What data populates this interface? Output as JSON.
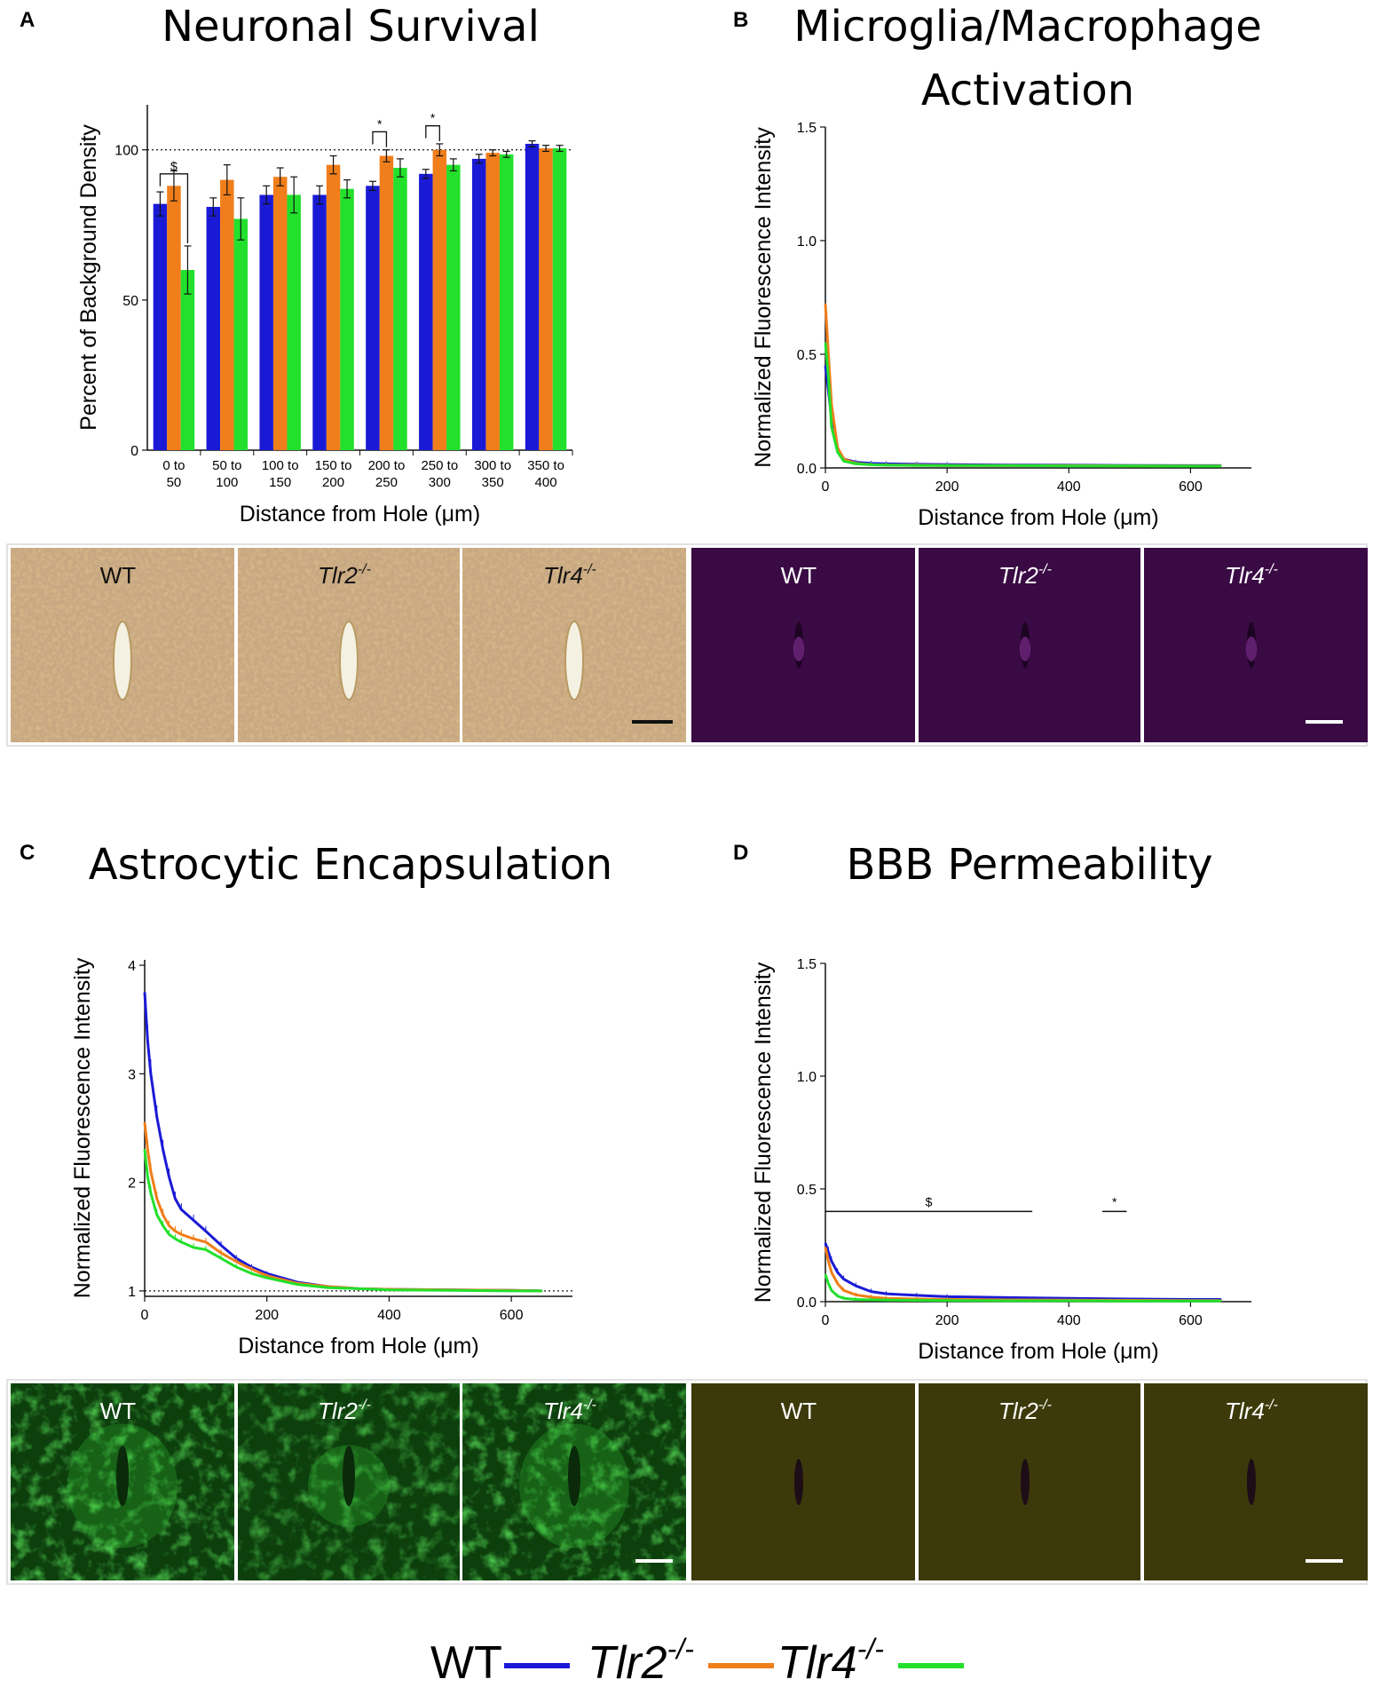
{
  "panels": {
    "A": {
      "letter": "A",
      "title": "Neuronal Survival"
    },
    "B": {
      "letter": "B",
      "title_line1": "Microglia/Macrophage",
      "title_line2": "Activation"
    },
    "C": {
      "letter": "C",
      "title": "Astrocytic Encapsulation"
    },
    "D": {
      "letter": "D",
      "title": "BBB Permeability"
    }
  },
  "genotypes": {
    "wt": "WT",
    "tlr2": "Tlr2",
    "tlr4": "Tlr4",
    "sup": "-/-"
  },
  "colors": {
    "wt": "#1a1ad6",
    "tlr2": "#f07e1a",
    "tlr4": "#22e02c"
  },
  "micrographs": {
    "A": {
      "stain_color": "#c8a882",
      "tiles": [
        "WT",
        "Tlr2",
        "Tlr4"
      ]
    },
    "B": {
      "stain_color": "#3a0a44",
      "tiles": [
        "WT",
        "Tlr2",
        "Tlr4"
      ]
    },
    "C": {
      "stain_color": "#0d3f0d",
      "tiles": [
        "WT",
        "Tlr2",
        "Tlr4"
      ]
    },
    "D": {
      "stain_color": "#3c3a0a",
      "tiles": [
        "WT",
        "Tlr2",
        "Tlr4"
      ]
    }
  },
  "legend": {
    "wt": "WT",
    "tlr2": "Tlr2",
    "tlr4": "Tlr4",
    "sup": "-/-"
  },
  "chart_data": [
    {
      "panel": "A",
      "type": "bar",
      "title": "Neuronal Survival",
      "xlabel": "Distance from Hole (μm)",
      "ylabel": "Percent of Background Density",
      "ylim": [
        0,
        115
      ],
      "yticks": [
        0,
        50,
        100
      ],
      "reference_line": 100,
      "categories": [
        [
          "0 to",
          "50"
        ],
        [
          "50 to",
          "100"
        ],
        [
          "100 to",
          "150"
        ],
        [
          "150 to",
          "200"
        ],
        [
          "200 to",
          "250"
        ],
        [
          "250 to",
          "300"
        ],
        [
          "300 to",
          "350"
        ],
        [
          "350 to",
          "400"
        ]
      ],
      "series": [
        {
          "name": "WT",
          "color": "#1a1ad6",
          "values": [
            82,
            81,
            85,
            85,
            88,
            92,
            97,
            102
          ],
          "errors": [
            4,
            3,
            3,
            3,
            1.5,
            1.5,
            1.5,
            1
          ]
        },
        {
          "name": "Tlr2-/-",
          "color": "#f07e1a",
          "values": [
            88,
            90,
            91,
            95,
            98,
            100,
            99,
            100.5
          ],
          "errors": [
            5,
            5,
            3,
            3,
            2,
            2,
            1,
            1
          ]
        },
        {
          "name": "Tlr4-/-",
          "color": "#22e02c",
          "values": [
            60,
            77,
            85,
            87,
            94,
            95,
            98.5,
            100.5
          ],
          "errors": [
            8,
            7,
            6,
            3,
            3,
            2,
            1,
            1
          ]
        }
      ],
      "significance": [
        {
          "label": "$",
          "category_index": 0,
          "between": [
            "WT",
            "Tlr4-/-"
          ]
        },
        {
          "label": "*",
          "category_index": 4,
          "between": [
            "WT",
            "Tlr2-/-"
          ]
        },
        {
          "label": "*",
          "category_index": 5,
          "between": [
            "WT",
            "Tlr2-/-"
          ]
        }
      ]
    },
    {
      "panel": "B",
      "type": "line",
      "title": "Microglia/Macrophage Activation",
      "xlabel": "Distance from Hole (μm)",
      "ylabel": "Normalized Fluorescence Intensity",
      "xlim": [
        0,
        700
      ],
      "ylim": [
        0,
        1.5
      ],
      "xticks": [
        0,
        200,
        400,
        600
      ],
      "yticks": [
        0.0,
        0.5,
        1.0,
        1.5
      ],
      "series": [
        {
          "name": "WT",
          "color": "#1a1ad6",
          "x": [
            0,
            5,
            10,
            20,
            30,
            50,
            75,
            100,
            150,
            200,
            300,
            400,
            500,
            600,
            650
          ],
          "y": [
            0.45,
            0.34,
            0.22,
            0.08,
            0.04,
            0.025,
            0.02,
            0.018,
            0.016,
            0.015,
            0.013,
            0.012,
            0.011,
            0.01,
            0.01
          ]
        },
        {
          "name": "Tlr2-/-",
          "color": "#f07e1a",
          "x": [
            0,
            5,
            10,
            20,
            30,
            50,
            75,
            100,
            150,
            200,
            300,
            400,
            500,
            600,
            650
          ],
          "y": [
            0.72,
            0.5,
            0.28,
            0.09,
            0.04,
            0.02,
            0.015,
            0.013,
            0.012,
            0.011,
            0.01,
            0.01,
            0.009,
            0.009,
            0.009
          ]
        },
        {
          "name": "Tlr4-/-",
          "color": "#22e02c",
          "x": [
            0,
            5,
            10,
            20,
            30,
            50,
            75,
            100,
            150,
            200,
            300,
            400,
            500,
            600,
            650
          ],
          "y": [
            0.55,
            0.4,
            0.18,
            0.07,
            0.03,
            0.018,
            0.014,
            0.012,
            0.011,
            0.01,
            0.01,
            0.009,
            0.009,
            0.008,
            0.008
          ]
        }
      ]
    },
    {
      "panel": "C",
      "type": "line",
      "title": "Astrocytic Encapsulation",
      "xlabel": "Distance from Hole (μm)",
      "ylabel": "Normalized Fluorescence Intensity",
      "xlim": [
        0,
        700
      ],
      "ylim": [
        0.95,
        4.05
      ],
      "xticks": [
        0,
        200,
        400,
        600
      ],
      "yticks": [
        1,
        2,
        3,
        4
      ],
      "reference_line": 1,
      "series": [
        {
          "name": "WT",
          "color": "#1a1ad6",
          "x": [
            0,
            5,
            10,
            20,
            30,
            40,
            50,
            60,
            80,
            100,
            125,
            150,
            175,
            200,
            250,
            300,
            350,
            400,
            500,
            600,
            650
          ],
          "y": [
            3.75,
            3.3,
            3.0,
            2.6,
            2.3,
            2.05,
            1.85,
            1.75,
            1.65,
            1.55,
            1.42,
            1.3,
            1.22,
            1.16,
            1.08,
            1.04,
            1.02,
            1.015,
            1.01,
            1.005,
            1.0
          ]
        },
        {
          "name": "Tlr2-/-",
          "color": "#f07e1a",
          "x": [
            0,
            5,
            10,
            20,
            30,
            40,
            50,
            60,
            80,
            100,
            125,
            150,
            175,
            200,
            250,
            300,
            350,
            400,
            500,
            600,
            650
          ],
          "y": [
            2.55,
            2.3,
            2.1,
            1.85,
            1.7,
            1.6,
            1.55,
            1.52,
            1.48,
            1.45,
            1.35,
            1.27,
            1.2,
            1.14,
            1.07,
            1.04,
            1.02,
            1.015,
            1.01,
            1.005,
            1.0
          ]
        },
        {
          "name": "Tlr4-/-",
          "color": "#22e02c",
          "x": [
            0,
            5,
            10,
            20,
            30,
            40,
            50,
            60,
            80,
            100,
            125,
            150,
            175,
            200,
            250,
            300,
            350,
            400,
            500,
            600,
            650
          ],
          "y": [
            2.3,
            2.05,
            1.9,
            1.7,
            1.6,
            1.52,
            1.48,
            1.45,
            1.4,
            1.38,
            1.3,
            1.22,
            1.16,
            1.12,
            1.06,
            1.03,
            1.02,
            1.01,
            1.005,
            1.0,
            1.0
          ]
        }
      ]
    },
    {
      "panel": "D",
      "type": "line",
      "title": "BBB Permeability",
      "xlabel": "Distance from Hole (μm)",
      "ylabel": "Normalized Fluorescence Intensity",
      "xlim": [
        0,
        700
      ],
      "ylim": [
        0,
        1.5
      ],
      "xticks": [
        0,
        200,
        400,
        600
      ],
      "yticks": [
        0.0,
        0.5,
        1.0,
        1.5
      ],
      "series": [
        {
          "name": "WT",
          "color": "#1a1ad6",
          "x": [
            0,
            5,
            10,
            20,
            30,
            50,
            75,
            100,
            150,
            200,
            300,
            400,
            500,
            600,
            650
          ],
          "y": [
            0.26,
            0.22,
            0.18,
            0.13,
            0.1,
            0.07,
            0.045,
            0.035,
            0.028,
            0.022,
            0.018,
            0.015,
            0.012,
            0.01,
            0.01
          ]
        },
        {
          "name": "Tlr2-/-",
          "color": "#f07e1a",
          "x": [
            0,
            5,
            10,
            20,
            30,
            50,
            75,
            100,
            150,
            200,
            300,
            400,
            500,
            600,
            650
          ],
          "y": [
            0.24,
            0.18,
            0.13,
            0.08,
            0.05,
            0.03,
            0.02,
            0.015,
            0.012,
            0.01,
            0.008,
            0.007,
            0.006,
            0.005,
            0.005
          ]
        },
        {
          "name": "Tlr4-/-",
          "color": "#22e02c",
          "x": [
            0,
            5,
            10,
            20,
            30,
            50,
            75,
            100,
            150,
            200,
            300,
            400,
            500,
            600,
            650
          ],
          "y": [
            0.12,
            0.08,
            0.05,
            0.025,
            0.015,
            0.01,
            0.008,
            0.007,
            0.006,
            0.005,
            0.004,
            0.004,
            0.003,
            0.003,
            0.003
          ]
        }
      ],
      "significance": [
        {
          "label": "$",
          "x_range": [
            0,
            340
          ],
          "y": 0.4
        },
        {
          "label": "*",
          "x_range": [
            455,
            495
          ],
          "y": 0.4
        }
      ]
    }
  ]
}
